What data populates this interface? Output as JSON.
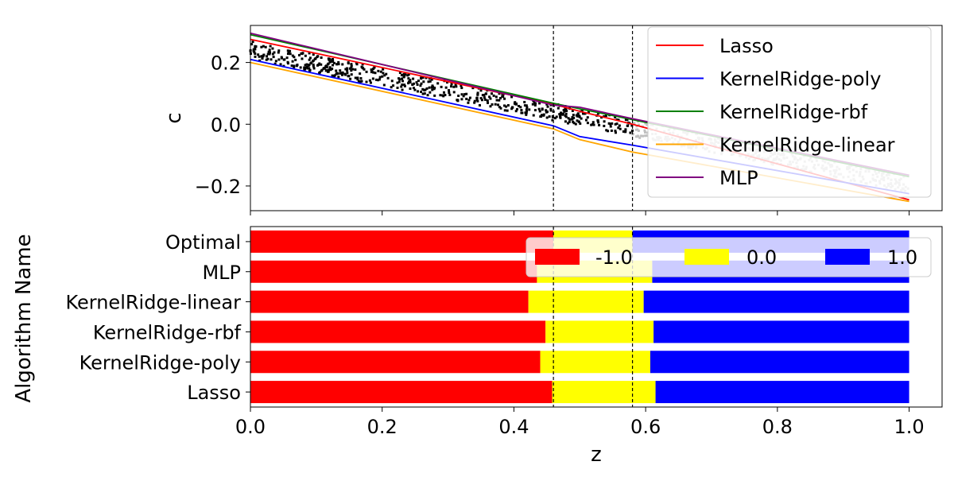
{
  "chart_data": [
    {
      "type": "line",
      "title": "",
      "xlabel": "",
      "ylabel": "c",
      "xlim": [
        0.0,
        1.05
      ],
      "ylim": [
        -0.28,
        0.32
      ],
      "xticks": [
        0.0,
        0.2,
        0.4,
        0.6,
        0.8,
        1.0
      ],
      "yticks": [
        0.2,
        0.0,
        -0.2
      ],
      "ytick_labels": [
        "0.2",
        "0.0",
        "−0.2"
      ],
      "grid": false,
      "legend_position": "top-right",
      "vlines": [
        0.46,
        0.58
      ],
      "series": [
        {
          "name": "Lasso",
          "color": "#ff0000",
          "x": [
            0.0,
            0.46,
            0.5,
            0.58,
            1.0
          ],
          "y": [
            0.275,
            0.065,
            0.042,
            0.0,
            -0.245
          ]
        },
        {
          "name": "KernelRidge-poly",
          "color": "#0000ff",
          "x": [
            0.0,
            0.46,
            0.5,
            0.58,
            1.0
          ],
          "y": [
            0.21,
            -0.005,
            -0.04,
            -0.068,
            -0.225
          ]
        },
        {
          "name": "KernelRidge-rbf",
          "color": "#008000",
          "x": [
            0.0,
            0.46,
            0.5,
            0.58,
            1.0
          ],
          "y": [
            0.29,
            0.068,
            0.05,
            0.015,
            -0.17
          ]
        },
        {
          "name": "KernelRidge-linear",
          "color": "#ffa500",
          "x": [
            0.0,
            0.46,
            0.5,
            0.58,
            1.0
          ],
          "y": [
            0.2,
            -0.015,
            -0.05,
            -0.09,
            -0.25
          ]
        },
        {
          "name": "MLP",
          "color": "#800080",
          "x": [
            0.0,
            0.46,
            0.5,
            0.58,
            1.0
          ],
          "y": [
            0.295,
            0.062,
            0.055,
            0.018,
            -0.165
          ]
        }
      ],
      "scatter": {
        "color_inside": "#000000",
        "color_outside": "#c0c0c0",
        "x_cutoff": 0.58,
        "band_upper": [
          [
            0.0,
            0.27
          ],
          [
            1.0,
            -0.17
          ]
        ],
        "band_lower": [
          [
            0.0,
            0.21
          ],
          [
            1.0,
            -0.22
          ]
        ]
      }
    },
    {
      "type": "bar",
      "orientation": "horizontal",
      "stacked": true,
      "title": "",
      "xlabel": "z",
      "ylabel": "Algorithm Name",
      "xlim": [
        0.0,
        1.05
      ],
      "xticks": [
        0.0,
        0.2,
        0.4,
        0.6,
        0.8,
        1.0
      ],
      "xtick_labels": [
        "0.0",
        "0.2",
        "0.4",
        "0.6",
        "0.8",
        "1.0"
      ],
      "categories": [
        "Lasso",
        "KernelRidge-poly",
        "KernelRidge-rbf",
        "KernelRidge-linear",
        "MLP",
        "Optimal"
      ],
      "legend_position": "top-right",
      "legend_columns": 3,
      "vlines": [
        0.46,
        0.58
      ],
      "segments": [
        {
          "name": "-1.0",
          "color": "#ff0000",
          "starts": [
            0.0,
            0.0,
            0.0,
            0.0,
            0.0,
            0.0
          ],
          "ends": [
            0.458,
            0.44,
            0.448,
            0.422,
            0.435,
            0.46
          ]
        },
        {
          "name": "0.0",
          "color": "#ffff00",
          "starts": [
            0.458,
            0.44,
            0.448,
            0.422,
            0.435,
            0.46
          ],
          "ends": [
            0.615,
            0.607,
            0.612,
            0.597,
            0.61,
            0.58
          ]
        },
        {
          "name": "1.0",
          "color": "#0000ff",
          "starts": [
            0.615,
            0.607,
            0.612,
            0.597,
            0.61,
            0.58
          ],
          "ends": [
            1.0,
            1.0,
            1.0,
            1.0,
            1.0,
            1.0
          ]
        }
      ]
    }
  ]
}
